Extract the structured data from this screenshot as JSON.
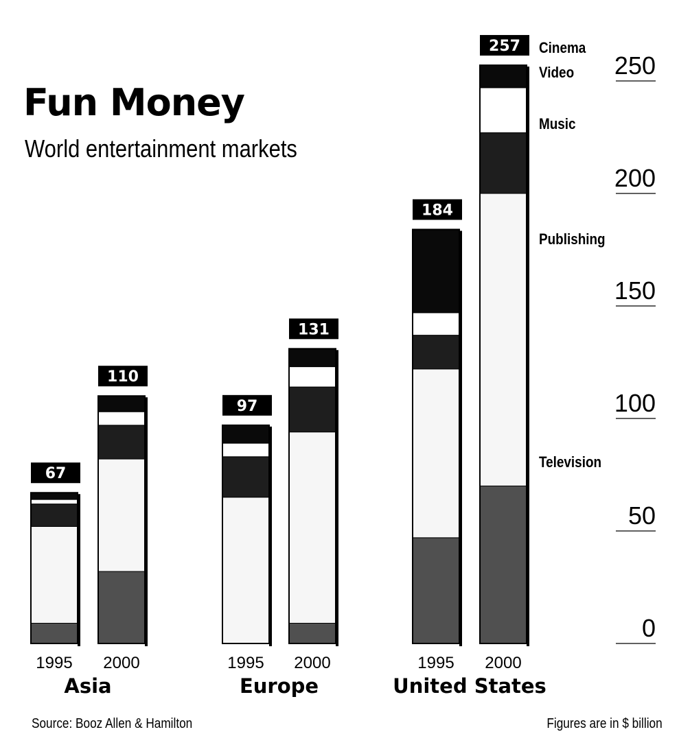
{
  "header": {
    "title": "Fun Money",
    "subtitle": "World entertainment markets"
  },
  "footer": {
    "source": "Source: Booz Allen & Hamilton",
    "units": "Figures are in $ billion"
  },
  "chart_data": {
    "type": "bar",
    "stacked": true,
    "title": "Fun Money",
    "subtitle": "World entertainment markets",
    "regions": [
      "Asia",
      "Europe",
      "United States"
    ],
    "years": [
      "1995",
      "2000"
    ],
    "categories": [
      "Asia 1995",
      "Asia 2000",
      "Europe 1995",
      "Europe 2000",
      "United States 1995",
      "United States 2000"
    ],
    "totals": [
      67,
      110,
      97,
      131,
      184,
      257
    ],
    "series": [
      {
        "name": "Television",
        "values": [
          9,
          32,
          0,
          9,
          47,
          70
        ]
      },
      {
        "name": "Publishing",
        "values": [
          43,
          50,
          65,
          85,
          75,
          130
        ]
      },
      {
        "name": "Music",
        "values": [
          10,
          15,
          18,
          20,
          15,
          27
        ]
      },
      {
        "name": "Video",
        "values": [
          2,
          6,
          6,
          9,
          10,
          20
        ]
      },
      {
        "name": "Cinema",
        "values": [
          3,
          7,
          8,
          8,
          37,
          10
        ]
      }
    ],
    "ylim": [
      0,
      260
    ],
    "yticks": [
      0,
      50,
      100,
      150,
      200,
      250
    ],
    "colors": {
      "Television": "#505050",
      "Publishing": "#f6f6f6",
      "Music": "#1e1e1e",
      "Video": "#ffffff",
      "Cinema": "#0a0a0a"
    },
    "legend": "labels beside rightmost bar",
    "grid": false
  }
}
